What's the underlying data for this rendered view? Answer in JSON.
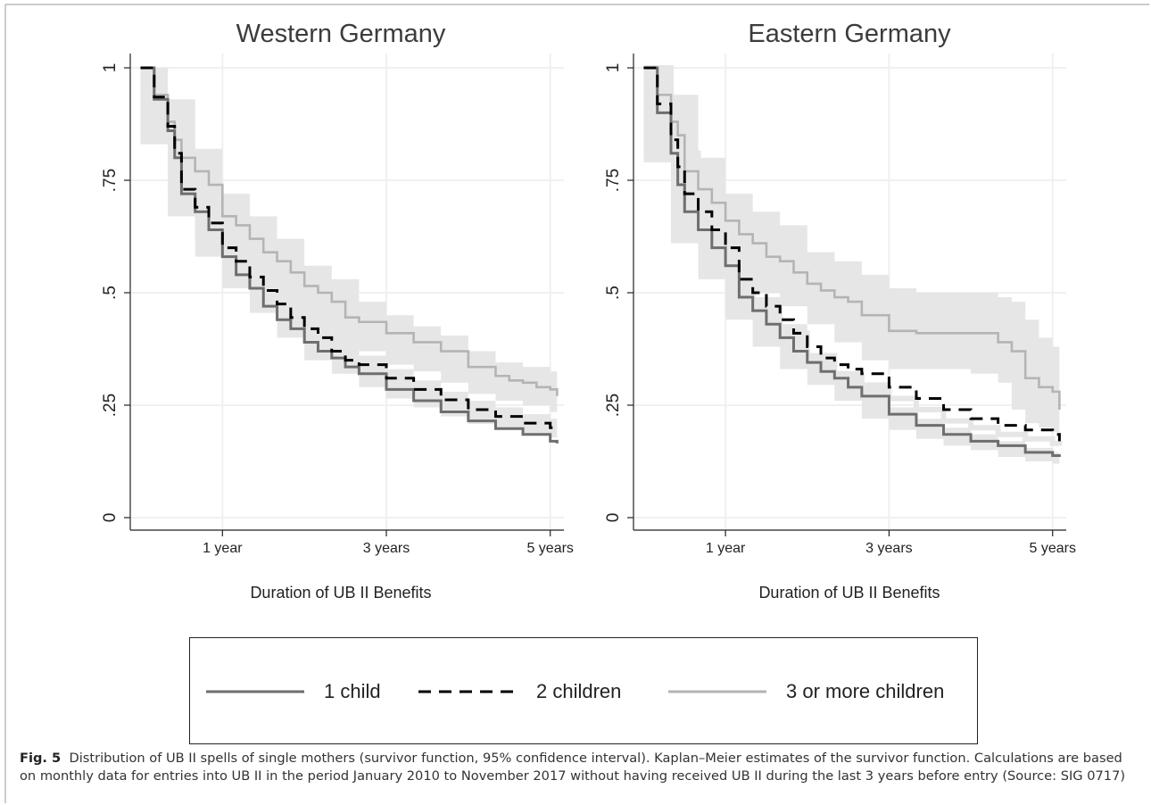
{
  "figure": {
    "caption_label": "Fig. 5",
    "caption_text": "Distribution of UB II spells of single mothers (survivor function, 95% confidence interval). Kaplan–Meier estimates of the survivor function. Calculations are based on monthly data for entries into UB II in the period January 2010 to November 2017 without having received UB II during the last 3 years before entry (Source: SIG 0717)"
  },
  "colors": {
    "one_child": "#6e6e6e",
    "two_children": "#000000",
    "three_plus": "#b4b4b4",
    "ci_band": "#e6e6e6",
    "grid": "#f0f0f0"
  },
  "chart_data": [
    {
      "type": "line",
      "title": "Western Germany",
      "xlabel": "Duration of UB II Benefits",
      "ylabel": "",
      "xticks": [
        {
          "value": 12,
          "label": "1 year"
        },
        {
          "value": 36,
          "label": "3 years"
        },
        {
          "value": 60,
          "label": "5 years"
        }
      ],
      "yticks": [
        {
          "value": 0,
          "label": "0"
        },
        {
          "value": 0.25,
          "label": ".25"
        },
        {
          "value": 0.5,
          "label": ".5"
        },
        {
          "value": 0.75,
          "label": ".75"
        },
        {
          "value": 1,
          "label": "1"
        }
      ],
      "xlim": [
        -1.5,
        62
      ],
      "ylim": [
        0,
        1
      ],
      "grid": true,
      "series": [
        {
          "name": "1 child",
          "style": "solid-dark",
          "x": [
            0,
            2,
            4,
            5,
            6,
            8,
            10,
            12,
            14,
            16,
            18,
            20,
            22,
            24,
            26,
            28,
            30,
            32,
            36,
            40,
            44,
            48,
            52,
            56,
            60,
            61
          ],
          "y": [
            1.0,
            0.93,
            0.86,
            0.8,
            0.72,
            0.68,
            0.64,
            0.58,
            0.54,
            0.51,
            0.47,
            0.44,
            0.42,
            0.39,
            0.37,
            0.355,
            0.335,
            0.32,
            0.285,
            0.26,
            0.235,
            0.215,
            0.198,
            0.185,
            0.17,
            0.165
          ]
        },
        {
          "name": "2 children",
          "style": "dashed",
          "x": [
            0,
            2,
            4,
            5,
            6,
            8,
            10,
            12,
            14,
            16,
            18,
            20,
            22,
            24,
            26,
            28,
            30,
            32,
            36,
            40,
            44,
            48,
            52,
            56,
            60,
            61
          ],
          "y": [
            1.0,
            0.935,
            0.87,
            0.81,
            0.73,
            0.69,
            0.655,
            0.6,
            0.57,
            0.535,
            0.505,
            0.475,
            0.445,
            0.42,
            0.4,
            0.37,
            0.35,
            0.34,
            0.31,
            0.285,
            0.262,
            0.24,
            0.225,
            0.21,
            0.2,
            0.195
          ]
        },
        {
          "name": "3 or more children",
          "style": "solid-light",
          "x": [
            0,
            2,
            4,
            5,
            6,
            8,
            10,
            12,
            14,
            16,
            18,
            20,
            22,
            24,
            26,
            28,
            30,
            32,
            36,
            40,
            44,
            48,
            52,
            54,
            56,
            58,
            60,
            61
          ],
          "y": [
            1.0,
            0.94,
            0.88,
            0.84,
            0.8,
            0.77,
            0.74,
            0.67,
            0.65,
            0.62,
            0.59,
            0.57,
            0.545,
            0.515,
            0.5,
            0.48,
            0.445,
            0.435,
            0.41,
            0.39,
            0.37,
            0.335,
            0.315,
            0.305,
            0.3,
            0.29,
            0.285,
            0.27
          ]
        }
      ],
      "ci_bands": [
        {
          "name": "3 or more children",
          "x": [
            0,
            4,
            8,
            12,
            16,
            20,
            24,
            28,
            32,
            36,
            40,
            44,
            48,
            52,
            56,
            60,
            61
          ],
          "lower": [
            1.0,
            0.83,
            0.72,
            0.62,
            0.57,
            0.51,
            0.47,
            0.42,
            0.39,
            0.37,
            0.34,
            0.325,
            0.3,
            0.275,
            0.26,
            0.25,
            0.235
          ],
          "upper": [
            1.0,
            0.93,
            0.82,
            0.72,
            0.67,
            0.62,
            0.56,
            0.53,
            0.48,
            0.45,
            0.425,
            0.405,
            0.37,
            0.345,
            0.335,
            0.325,
            0.32
          ]
        },
        {
          "name": "2 children",
          "x": [
            0,
            4,
            8,
            12,
            16,
            20,
            24,
            28,
            32,
            36,
            40,
            44,
            48,
            52,
            56,
            60,
            61
          ],
          "lower": [
            1.0,
            0.85,
            0.67,
            0.58,
            0.51,
            0.455,
            0.4,
            0.35,
            0.32,
            0.29,
            0.265,
            0.245,
            0.225,
            0.208,
            0.195,
            0.182,
            0.178
          ],
          "upper": [
            1.0,
            0.89,
            0.71,
            0.62,
            0.56,
            0.5,
            0.44,
            0.39,
            0.36,
            0.33,
            0.305,
            0.28,
            0.26,
            0.245,
            0.23,
            0.22,
            0.215
          ]
        }
      ]
    },
    {
      "type": "line",
      "title": "Eastern Germany",
      "xlabel": "Duration of UB II Benefits",
      "ylabel": "",
      "xticks": [
        {
          "value": 12,
          "label": "1 year"
        },
        {
          "value": 36,
          "label": "3 years"
        },
        {
          "value": 60,
          "label": "5 years"
        }
      ],
      "yticks": [
        {
          "value": 0,
          "label": "0"
        },
        {
          "value": 0.25,
          "label": ".25"
        },
        {
          "value": 0.5,
          "label": ".5"
        },
        {
          "value": 0.75,
          "label": ".75"
        },
        {
          "value": 1,
          "label": "1"
        }
      ],
      "xlim": [
        -1.5,
        62
      ],
      "ylim": [
        0,
        1
      ],
      "grid": true,
      "series": [
        {
          "name": "1 child",
          "style": "solid-dark",
          "x": [
            0,
            2,
            4,
            5,
            6,
            8,
            10,
            12,
            14,
            16,
            18,
            20,
            22,
            24,
            26,
            28,
            30,
            32,
            36,
            40,
            44,
            48,
            52,
            56,
            60,
            61
          ],
          "y": [
            1.0,
            0.9,
            0.81,
            0.74,
            0.68,
            0.64,
            0.6,
            0.56,
            0.49,
            0.46,
            0.43,
            0.4,
            0.37,
            0.345,
            0.325,
            0.31,
            0.29,
            0.27,
            0.23,
            0.205,
            0.185,
            0.17,
            0.16,
            0.145,
            0.138,
            0.135
          ]
        },
        {
          "name": "2 children",
          "style": "dashed",
          "x": [
            0,
            2,
            4,
            5,
            6,
            8,
            10,
            12,
            14,
            16,
            18,
            20,
            22,
            24,
            26,
            28,
            30,
            32,
            36,
            40,
            44,
            48,
            52,
            56,
            60,
            61
          ],
          "y": [
            1.0,
            0.92,
            0.84,
            0.78,
            0.72,
            0.68,
            0.64,
            0.6,
            0.53,
            0.5,
            0.47,
            0.44,
            0.41,
            0.38,
            0.355,
            0.34,
            0.33,
            0.32,
            0.29,
            0.265,
            0.24,
            0.22,
            0.205,
            0.195,
            0.185,
            0.17
          ]
        },
        {
          "name": "3 or more children",
          "style": "solid-light",
          "x": [
            0,
            2,
            4,
            5,
            6,
            8,
            10,
            12,
            14,
            16,
            18,
            20,
            22,
            24,
            26,
            28,
            30,
            32,
            36,
            40,
            44,
            48,
            52,
            54,
            56,
            58,
            60,
            61
          ],
          "y": [
            1.0,
            0.94,
            0.88,
            0.85,
            0.77,
            0.73,
            0.7,
            0.66,
            0.63,
            0.61,
            0.58,
            0.57,
            0.545,
            0.52,
            0.505,
            0.49,
            0.48,
            0.45,
            0.415,
            0.41,
            0.41,
            0.41,
            0.39,
            0.37,
            0.31,
            0.29,
            0.28,
            0.24
          ]
        }
      ],
      "ci_bands": [
        {
          "name": "3 or more children",
          "x": [
            0,
            4,
            8,
            12,
            16,
            20,
            24,
            28,
            32,
            36,
            40,
            44,
            48,
            52,
            54,
            56,
            58,
            60,
            61
          ],
          "lower": [
            1.0,
            0.82,
            0.66,
            0.6,
            0.55,
            0.5,
            0.47,
            0.43,
            0.39,
            0.35,
            0.33,
            0.33,
            0.33,
            0.32,
            0.3,
            0.24,
            0.21,
            0.2,
            0.19
          ],
          "upper": [
            1.0,
            0.94,
            0.8,
            0.72,
            0.68,
            0.65,
            0.59,
            0.57,
            0.54,
            0.51,
            0.5,
            0.5,
            0.5,
            0.49,
            0.48,
            0.44,
            0.4,
            0.38,
            0.37
          ]
        },
        {
          "name": "2 children",
          "x": [
            0,
            4,
            8,
            12,
            16,
            20,
            24,
            28,
            32,
            36,
            40,
            44,
            48,
            52,
            56,
            60,
            61
          ],
          "lower": [
            1.0,
            0.81,
            0.65,
            0.56,
            0.47,
            0.41,
            0.36,
            0.32,
            0.295,
            0.265,
            0.24,
            0.215,
            0.2,
            0.185,
            0.175,
            0.165,
            0.16
          ]
        },
        {
          "name": "1 child",
          "x": [
            0,
            4,
            8,
            12,
            16,
            20,
            24,
            28,
            32,
            36,
            40,
            44,
            48,
            52,
            56,
            60,
            61
          ],
          "lower": [
            1.0,
            0.79,
            0.61,
            0.53,
            0.44,
            0.38,
            0.33,
            0.295,
            0.26,
            0.22,
            0.195,
            0.175,
            0.16,
            0.15,
            0.135,
            0.125,
            0.12
          ],
          "upper": [
            1.0,
            0.84,
            0.67,
            0.59,
            0.49,
            0.43,
            0.36,
            0.325,
            0.29,
            0.245,
            0.22,
            0.2,
            0.185,
            0.17,
            0.155,
            0.145,
            0.14
          ]
        }
      ]
    }
  ],
  "legend": {
    "items": [
      {
        "label": "1 child",
        "style": "solid-dark"
      },
      {
        "label": "2 children",
        "style": "dashed"
      },
      {
        "label": "3 or more children",
        "style": "solid-light"
      }
    ]
  }
}
